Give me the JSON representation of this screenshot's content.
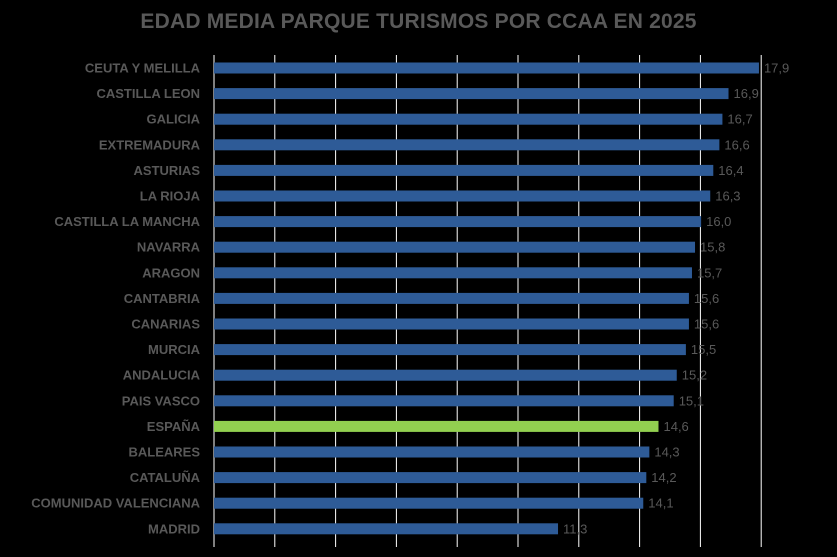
{
  "chart_data": {
    "type": "bar",
    "orientation": "horizontal",
    "title": "EDAD MEDIA PARQUE TURISMOS POR CCAA EN 2025",
    "categories": [
      "CEUTA Y MELILLA",
      "CASTILLA LEON",
      "GALICIA",
      "EXTREMADURA",
      "ASTURIAS",
      "LA RIOJA",
      "CASTILLA LA MANCHA",
      "NAVARRA",
      "ARAGON",
      "CANTABRIA",
      "CANARIAS",
      "MURCIA",
      "ANDALUCIA",
      "PAIS VASCO",
      "ESPAÑA",
      "BALEARES",
      "CATALUÑA",
      "COMUNIDAD VALENCIANA",
      "MADRID"
    ],
    "values": [
      17.9,
      16.9,
      16.7,
      16.6,
      16.4,
      16.3,
      16.0,
      15.8,
      15.7,
      15.6,
      15.6,
      15.5,
      15.2,
      15.1,
      14.6,
      14.3,
      14.2,
      14.1,
      11.3
    ],
    "value_labels": [
      "17,9",
      "16,9",
      "16,7",
      "16,6",
      "16,4",
      "16,3",
      "16,0",
      "15,8",
      "15,7",
      "15,6",
      "15,6",
      "15,5",
      "15,2",
      "15,1",
      "14,6",
      "14,3",
      "14,2",
      "14,1",
      "11,3"
    ],
    "highlight_category": "ESPAÑA",
    "xlim": [
      0,
      18
    ],
    "grid": true,
    "colors": {
      "bar": "#2E5B97",
      "highlight": "#92D050",
      "grid": "#FFFFFF",
      "text": "#595959",
      "background": "#000000"
    }
  }
}
